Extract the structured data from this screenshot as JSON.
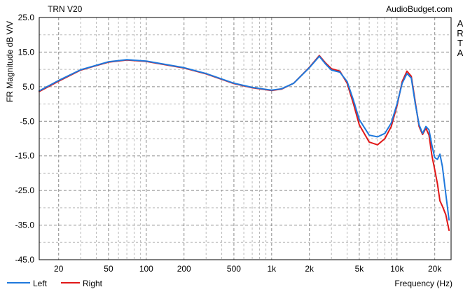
{
  "chart_data": {
    "type": "line",
    "title": "TRN V20",
    "source": "AudioBudget.com",
    "watermark": "ARTA",
    "ylabel": "FR Magnitude dB V/V",
    "xlabel": "Frequency (Hz)",
    "x_scale": "log",
    "xlim": [
      14,
      27000
    ],
    "ylim": [
      -45,
      25
    ],
    "grid": true,
    "legend_position": "bottom-left",
    "y_ticks": [
      25.0,
      15.0,
      5.0,
      -5.0,
      -15.0,
      -25.0,
      -35.0,
      -45.0
    ],
    "y_tick_labels": [
      "25.0",
      "15.0",
      "5.0",
      "-5.0",
      "-15.0",
      "-25.0",
      "-35.0",
      "-45.0"
    ],
    "x_ticks": [
      20,
      50,
      100,
      200,
      500,
      1000,
      2000,
      5000,
      10000,
      20000
    ],
    "x_tick_labels": [
      "20",
      "50",
      "100",
      "200",
      "500",
      "1k",
      "2k",
      "5k",
      "10k",
      "20k"
    ],
    "series": [
      {
        "name": "Left",
        "color": "#1e78dc",
        "points": [
          [
            14,
            3.8
          ],
          [
            20,
            6.8
          ],
          [
            30,
            9.9
          ],
          [
            50,
            12.2
          ],
          [
            70,
            12.8
          ],
          [
            100,
            12.4
          ],
          [
            150,
            11.3
          ],
          [
            200,
            10.5
          ],
          [
            300,
            8.8
          ],
          [
            500,
            6.0
          ],
          [
            700,
            4.8
          ],
          [
            1000,
            4.0
          ],
          [
            1200,
            4.4
          ],
          [
            1500,
            6.0
          ],
          [
            2000,
            10.5
          ],
          [
            2400,
            13.8
          ],
          [
            2700,
            11.5
          ],
          [
            3000,
            9.8
          ],
          [
            3500,
            9.2
          ],
          [
            4000,
            6.5
          ],
          [
            4500,
            1.0
          ],
          [
            5000,
            -4.5
          ],
          [
            6000,
            -9.0
          ],
          [
            7000,
            -9.5
          ],
          [
            8000,
            -8.5
          ],
          [
            9000,
            -5.5
          ],
          [
            10000,
            0.0
          ],
          [
            11000,
            6.0
          ],
          [
            12000,
            8.8
          ],
          [
            13000,
            7.5
          ],
          [
            14000,
            0.0
          ],
          [
            15000,
            -6.0
          ],
          [
            16000,
            -8.5
          ],
          [
            17000,
            -6.5
          ],
          [
            18000,
            -7.5
          ],
          [
            19000,
            -12.0
          ],
          [
            20000,
            -15.5
          ],
          [
            21000,
            -16.0
          ],
          [
            22000,
            -14.5
          ],
          [
            23000,
            -18.0
          ],
          [
            24500,
            -26.0
          ],
          [
            26000,
            -33.5
          ]
        ]
      },
      {
        "name": "Right",
        "color": "#e01818",
        "points": [
          [
            14,
            3.6
          ],
          [
            20,
            6.6
          ],
          [
            30,
            9.8
          ],
          [
            50,
            12.1
          ],
          [
            70,
            12.7
          ],
          [
            100,
            12.3
          ],
          [
            150,
            11.2
          ],
          [
            200,
            10.4
          ],
          [
            300,
            8.7
          ],
          [
            500,
            5.9
          ],
          [
            700,
            4.7
          ],
          [
            1000,
            3.9
          ],
          [
            1200,
            4.3
          ],
          [
            1500,
            6.0
          ],
          [
            2000,
            10.6
          ],
          [
            2400,
            14.0
          ],
          [
            2700,
            11.8
          ],
          [
            3000,
            10.2
          ],
          [
            3500,
            9.5
          ],
          [
            4000,
            6.0
          ],
          [
            4500,
            0.0
          ],
          [
            5000,
            -6.0
          ],
          [
            6000,
            -11.0
          ],
          [
            7000,
            -11.8
          ],
          [
            8000,
            -10.0
          ],
          [
            9000,
            -6.5
          ],
          [
            10000,
            -0.5
          ],
          [
            11000,
            6.5
          ],
          [
            12000,
            9.5
          ],
          [
            13000,
            8.0
          ],
          [
            14000,
            0.5
          ],
          [
            15000,
            -6.5
          ],
          [
            16000,
            -8.8
          ],
          [
            17000,
            -7.0
          ],
          [
            18000,
            -9.0
          ],
          [
            19000,
            -15.0
          ],
          [
            20000,
            -19.0
          ],
          [
            21000,
            -23.0
          ],
          [
            22000,
            -28.0
          ],
          [
            23000,
            -29.5
          ],
          [
            24500,
            -32.0
          ],
          [
            26000,
            -36.5
          ]
        ]
      }
    ]
  }
}
